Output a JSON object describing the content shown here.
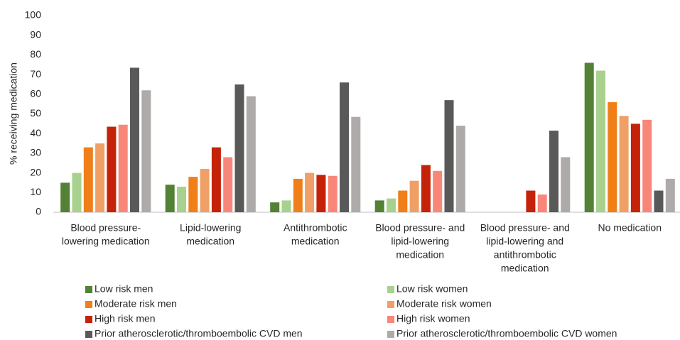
{
  "chart_data": {
    "type": "bar",
    "y_label": "% receiving medication",
    "categories": [
      [
        "Blood pressure-",
        "lowering medication"
      ],
      [
        "Lipid-lowering",
        "medication"
      ],
      [
        "Antithrombotic",
        "medication"
      ],
      [
        "Blood pressure- and",
        "lipid-lowering",
        "medication"
      ],
      [
        "Blood pressure- and",
        "lipid-lowering and",
        "antithrombotic",
        "medication"
      ],
      [
        "No medication"
      ]
    ],
    "series": [
      {
        "name": "Low risk men",
        "color": "#538135",
        "values": [
          15,
          14,
          5,
          6,
          null,
          76
        ]
      },
      {
        "name": "Low risk women",
        "color": "#a9d18e",
        "values": [
          20,
          13,
          6,
          7,
          null,
          72
        ]
      },
      {
        "name": "Moderate risk men",
        "color": "#f07f1a",
        "values": [
          33,
          18,
          17,
          11,
          null,
          56
        ]
      },
      {
        "name": "Moderate risk women",
        "color": "#f0a066",
        "values": [
          35,
          22,
          20,
          16,
          null,
          49
        ]
      },
      {
        "name": "High risk men",
        "color": "#c5220a",
        "values": [
          43.5,
          33,
          19,
          24,
          11,
          45
        ]
      },
      {
        "name": "High risk women",
        "color": "#f8877a",
        "values": [
          44.5,
          28,
          18.5,
          21,
          9,
          47
        ]
      },
      {
        "name": "Prior atherosclerotic/thromboembolic CVD men",
        "color": "#595959",
        "values": [
          73.5,
          65,
          66,
          57,
          41.5,
          11
        ]
      },
      {
        "name": "Prior atherosclerotic/thromboembolic CVD women",
        "color": "#aeaaaa",
        "values": [
          62,
          59,
          48.5,
          44,
          28,
          17
        ]
      }
    ],
    "ylim": [
      0,
      100
    ],
    "yticks": [
      0,
      10,
      20,
      30,
      40,
      50,
      60,
      70,
      80,
      90,
      100
    ]
  }
}
